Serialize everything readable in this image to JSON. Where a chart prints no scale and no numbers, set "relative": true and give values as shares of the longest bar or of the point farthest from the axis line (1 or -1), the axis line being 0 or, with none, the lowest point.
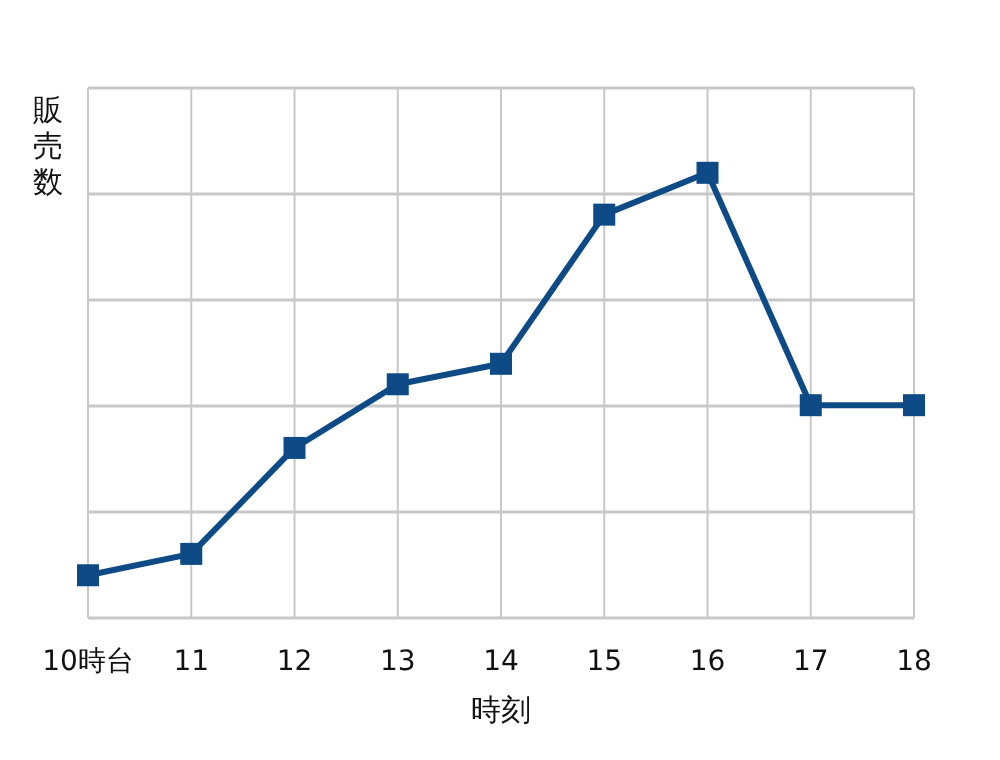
{
  "chart_data": {
    "type": "line",
    "relative": true,
    "xlabel": "時刻",
    "ylabel": "販売数",
    "categories": [
      "10時台",
      "11",
      "12",
      "13",
      "14",
      "15",
      "16",
      "17",
      "18"
    ],
    "series": [
      {
        "color": "#0d4a86",
        "values": [
          0.096,
          0.144,
          0.382,
          0.525,
          0.571,
          0.906,
          1,
          0.478,
          0.478
        ]
      }
    ],
    "grid": true,
    "marker": "square",
    "line_style": "solid"
  }
}
